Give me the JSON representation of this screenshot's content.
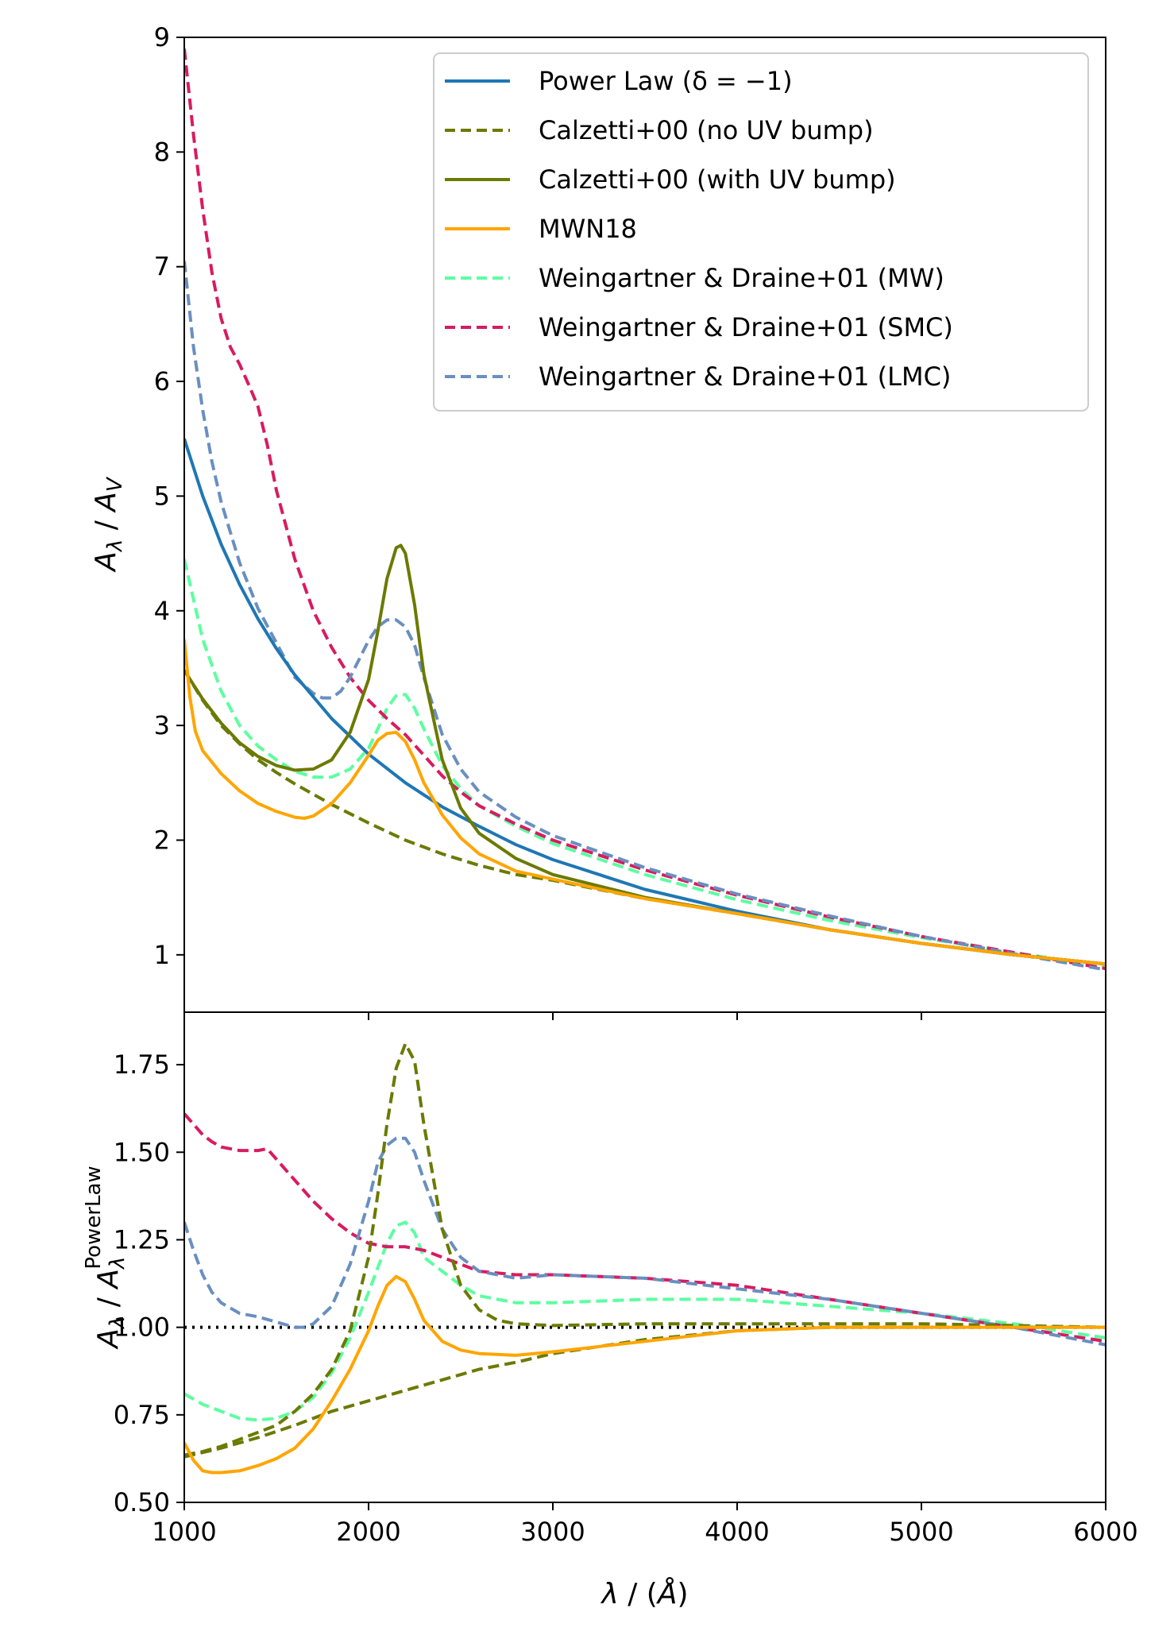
{
  "chart_data": [
    {
      "type": "line",
      "panel": "top",
      "xlabel": "λ / (Å)",
      "ylabel": "A_λ / A_V",
      "xlim": [
        1000,
        6000
      ],
      "ylim": [
        0.5,
        9
      ],
      "xticks": [
        2000,
        3000,
        4000,
        5000
      ],
      "yticks": [
        1,
        2,
        3,
        4,
        5,
        6,
        7,
        8,
        9
      ],
      "ytick_labels": [
        "1",
        "2",
        "3",
        "4",
        "5",
        "6",
        "7",
        "8",
        "9"
      ],
      "legend": {
        "position": "top-right",
        "entries": [
          {
            "label": "Power Law (δ = −1)",
            "color": "#1f77b4",
            "dash": "solid"
          },
          {
            "label": "Calzetti+00 (no UV bump)",
            "color": "#6b7a00",
            "dash": "dashed"
          },
          {
            "label": "Calzetti+00 (with UV bump)",
            "color": "#6b7a00",
            "dash": "solid"
          },
          {
            "label": "MWN18",
            "color": "#ffa500",
            "dash": "solid"
          },
          {
            "label": "Weingartner & Draine+01 (MW)",
            "color": "#5cffa0",
            "dash": "dashed"
          },
          {
            "label": "Weingartner & Draine+01 (SMC)",
            "color": "#d81b60",
            "dash": "dashed"
          },
          {
            "label": "Weingartner & Draine+01 (LMC)",
            "color": "#6a8fbf",
            "dash": "dashed"
          }
        ]
      },
      "series": [
        {
          "name": "Weingartner & Draine+01 (MW)",
          "color": "#5cffa0",
          "dash": "dashed",
          "x": [
            1000,
            1100,
            1200,
            1300,
            1400,
            1500,
            1600,
            1700,
            1800,
            1900,
            2000,
            2050,
            2100,
            2150,
            2200,
            2250,
            2300,
            2400,
            2500,
            2600,
            2800,
            3000,
            3500,
            4000,
            4500,
            5000,
            5500,
            6000
          ],
          "y": [
            4.45,
            3.75,
            3.3,
            3.0,
            2.82,
            2.7,
            2.6,
            2.55,
            2.55,
            2.62,
            2.8,
            2.97,
            3.15,
            3.26,
            3.27,
            3.15,
            2.97,
            2.65,
            2.45,
            2.3,
            2.12,
            1.97,
            1.7,
            1.48,
            1.3,
            1.15,
            1.02,
            0.9
          ]
        },
        {
          "name": "Weingartner & Draine+01 (SMC)",
          "color": "#d81b60",
          "dash": "dashed",
          "x": [
            1000,
            1050,
            1100,
            1150,
            1200,
            1250,
            1300,
            1350,
            1400,
            1450,
            1500,
            1600,
            1700,
            1800,
            1900,
            2000,
            2100,
            2200,
            2300,
            2400,
            2500,
            2600,
            2800,
            3000,
            3500,
            4000,
            4500,
            5000,
            5500,
            6000
          ],
          "y": [
            8.9,
            8.15,
            7.5,
            6.95,
            6.55,
            6.3,
            6.15,
            5.97,
            5.78,
            5.45,
            5.05,
            4.45,
            4.0,
            3.68,
            3.42,
            3.22,
            3.06,
            2.92,
            2.74,
            2.56,
            2.42,
            2.3,
            2.14,
            2.0,
            1.74,
            1.52,
            1.33,
            1.16,
            1.02,
            0.88
          ]
        },
        {
          "name": "Weingartner & Draine+01 (LMC)",
          "color": "#6a8fbf",
          "dash": "dashed",
          "x": [
            1000,
            1050,
            1100,
            1150,
            1200,
            1300,
            1400,
            1500,
            1600,
            1700,
            1750,
            1800,
            1850,
            1900,
            1950,
            2000,
            2050,
            2100,
            2150,
            2200,
            2250,
            2300,
            2400,
            2500,
            2600,
            2800,
            3000,
            3500,
            4000,
            4500,
            5000,
            5500,
            6000
          ],
          "y": [
            7.05,
            6.3,
            5.75,
            5.3,
            4.95,
            4.42,
            4.02,
            3.72,
            3.42,
            3.28,
            3.24,
            3.24,
            3.3,
            3.42,
            3.58,
            3.74,
            3.86,
            3.92,
            3.92,
            3.86,
            3.7,
            3.42,
            2.92,
            2.62,
            2.42,
            2.2,
            2.04,
            1.76,
            1.53,
            1.34,
            1.16,
            1.01,
            0.87
          ]
        },
        {
          "name": "Power Law (δ = −1)",
          "color": "#1f77b4",
          "dash": "solid",
          "x": [
            1000,
            1100,
            1200,
            1300,
            1400,
            1500,
            1600,
            1800,
            2000,
            2200,
            2400,
            2600,
            2800,
            3000,
            3500,
            4000,
            4500,
            5000,
            5500,
            6000
          ],
          "y": [
            5.5,
            5.0,
            4.58,
            4.23,
            3.93,
            3.67,
            3.44,
            3.06,
            2.75,
            2.5,
            2.29,
            2.12,
            1.96,
            1.83,
            1.57,
            1.38,
            1.22,
            1.1,
            1.0,
            0.92
          ]
        },
        {
          "name": "Calzetti+00 (no UV bump)",
          "color": "#6b7a00",
          "dash": "dashed",
          "x": [
            1000,
            1100,
            1200,
            1300,
            1400,
            1500,
            1600,
            1800,
            2000,
            2200,
            2400,
            2600,
            2800,
            3000,
            3500,
            4000,
            4500,
            5000,
            5500,
            6000
          ],
          "y": [
            3.48,
            3.22,
            3.0,
            2.84,
            2.7,
            2.59,
            2.49,
            2.31,
            2.15,
            2.0,
            1.88,
            1.78,
            1.7,
            1.65,
            1.49,
            1.36,
            1.22,
            1.1,
            1.0,
            0.92
          ]
        },
        {
          "name": "Calzetti+00 (with UV bump)",
          "color": "#6b7a00",
          "dash": "solid",
          "x": [
            1000,
            1100,
            1200,
            1300,
            1400,
            1500,
            1600,
            1700,
            1800,
            1900,
            2000,
            2050,
            2100,
            2150,
            2175,
            2200,
            2250,
            2300,
            2400,
            2500,
            2600,
            2800,
            3000,
            3500,
            4000,
            4500,
            5000,
            5500,
            6000
          ],
          "y": [
            3.48,
            3.23,
            3.02,
            2.85,
            2.73,
            2.65,
            2.61,
            2.62,
            2.7,
            2.94,
            3.4,
            3.82,
            4.28,
            4.55,
            4.57,
            4.5,
            4.05,
            3.45,
            2.7,
            2.28,
            2.06,
            1.84,
            1.7,
            1.5,
            1.36,
            1.22,
            1.1,
            1.0,
            0.92
          ]
        },
        {
          "name": "MWN18",
          "color": "#ffa500",
          "dash": "solid",
          "x": [
            1000,
            1030,
            1060,
            1100,
            1150,
            1200,
            1300,
            1400,
            1500,
            1600,
            1650,
            1700,
            1800,
            1900,
            2000,
            2050,
            2100,
            2150,
            2200,
            2250,
            2300,
            2400,
            2500,
            2600,
            2800,
            3000,
            3500,
            4000,
            4500,
            5000,
            5500,
            6000
          ],
          "y": [
            3.75,
            3.25,
            2.95,
            2.78,
            2.68,
            2.58,
            2.43,
            2.32,
            2.25,
            2.2,
            2.19,
            2.21,
            2.32,
            2.5,
            2.74,
            2.87,
            2.93,
            2.94,
            2.86,
            2.7,
            2.5,
            2.22,
            2.02,
            1.88,
            1.73,
            1.66,
            1.49,
            1.36,
            1.22,
            1.1,
            1.0,
            0.92
          ]
        }
      ]
    },
    {
      "type": "line",
      "panel": "bottom",
      "xlabel": "λ / (Å)",
      "ylabel": "A_λ / A_λ^PowerLaw",
      "xlim": [
        1000,
        6000
      ],
      "ylim": [
        0.5,
        1.9
      ],
      "xticks": [
        1000,
        2000,
        3000,
        4000,
        5000,
        6000
      ],
      "xtick_labels": [
        "1000",
        "2000",
        "3000",
        "4000",
        "5000",
        "6000"
      ],
      "yticks": [
        0.5,
        0.75,
        1.0,
        1.25,
        1.5,
        1.75
      ],
      "ytick_labels": [
        "0.50",
        "0.75",
        "1.00",
        "1.25",
        "1.50",
        "1.75"
      ],
      "reference_line": {
        "y": 1.0,
        "style": "dotted",
        "color": "#000000"
      },
      "series": [
        {
          "name": "Weingartner & Draine+01 (MW)",
          "color": "#5cffa0",
          "dash": "dashed",
          "x": [
            1000,
            1100,
            1200,
            1300,
            1400,
            1500,
            1600,
            1700,
            1800,
            1900,
            2000,
            2100,
            2150,
            2200,
            2250,
            2300,
            2400,
            2500,
            2600,
            2800,
            3000,
            3500,
            4000,
            4500,
            5000,
            5500,
            6000
          ],
          "y": [
            0.81,
            0.78,
            0.76,
            0.74,
            0.735,
            0.74,
            0.76,
            0.8,
            0.87,
            0.97,
            1.1,
            1.24,
            1.29,
            1.3,
            1.27,
            1.2,
            1.16,
            1.12,
            1.09,
            1.07,
            1.07,
            1.08,
            1.08,
            1.06,
            1.04,
            1.01,
            0.97
          ]
        },
        {
          "name": "Weingartner & Draine+01 (SMC)",
          "color": "#d81b60",
          "dash": "dashed",
          "x": [
            1000,
            1050,
            1100,
            1150,
            1200,
            1300,
            1400,
            1450,
            1500,
            1600,
            1700,
            1800,
            1900,
            2000,
            2100,
            2200,
            2300,
            2400,
            2500,
            2600,
            2800,
            3000,
            3500,
            4000,
            4500,
            5000,
            5500,
            6000
          ],
          "y": [
            1.61,
            1.58,
            1.55,
            1.53,
            1.515,
            1.505,
            1.505,
            1.51,
            1.48,
            1.42,
            1.36,
            1.31,
            1.27,
            1.24,
            1.23,
            1.23,
            1.22,
            1.2,
            1.18,
            1.16,
            1.15,
            1.15,
            1.14,
            1.12,
            1.08,
            1.04,
            1.0,
            0.96
          ]
        },
        {
          "name": "Weingartner & Draine+01 (LMC)",
          "color": "#6a8fbf",
          "dash": "dashed",
          "x": [
            1000,
            1050,
            1100,
            1150,
            1200,
            1300,
            1400,
            1500,
            1600,
            1650,
            1700,
            1800,
            1900,
            2000,
            2050,
            2100,
            2150,
            2200,
            2250,
            2300,
            2400,
            2500,
            2600,
            2800,
            3000,
            3500,
            4000,
            4500,
            5000,
            5500,
            6000
          ],
          "y": [
            1.3,
            1.22,
            1.15,
            1.1,
            1.07,
            1.04,
            1.03,
            1.015,
            1.0,
            1.0,
            1.01,
            1.06,
            1.18,
            1.36,
            1.47,
            1.52,
            1.54,
            1.54,
            1.5,
            1.42,
            1.28,
            1.2,
            1.16,
            1.14,
            1.15,
            1.14,
            1.11,
            1.08,
            1.04,
            1.0,
            0.95
          ]
        },
        {
          "name": "Calzetti+00 (no UV bump)",
          "color": "#6b7a00",
          "dash": "dashed",
          "x": [
            1000,
            1200,
            1400,
            1600,
            1800,
            2000,
            2200,
            2400,
            2600,
            2800,
            3000,
            3500,
            4000,
            4500,
            5000,
            5500,
            6000
          ],
          "y": [
            0.63,
            0.655,
            0.685,
            0.72,
            0.76,
            0.79,
            0.82,
            0.85,
            0.88,
            0.9,
            0.925,
            0.965,
            0.99,
            1.0,
            1.0,
            1.0,
            1.0
          ]
        },
        {
          "name": "Calzetti+00 (with UV bump)",
          "color": "#6b7a00",
          "dash": "dashed",
          "x": [
            1000,
            1100,
            1200,
            1300,
            1400,
            1500,
            1600,
            1700,
            1800,
            1900,
            2000,
            2050,
            2100,
            2150,
            2200,
            2250,
            2300,
            2400,
            2500,
            2600,
            2700,
            2800,
            3000,
            3500,
            4000,
            4500,
            5000,
            5500,
            6000
          ],
          "y": [
            0.635,
            0.645,
            0.66,
            0.68,
            0.7,
            0.72,
            0.76,
            0.81,
            0.88,
            0.99,
            1.2,
            1.38,
            1.58,
            1.74,
            1.81,
            1.76,
            1.58,
            1.28,
            1.12,
            1.05,
            1.02,
            1.01,
            1.005,
            1.01,
            1.01,
            1.01,
            1.01,
            1.005,
            1.0
          ]
        },
        {
          "name": "MWN18",
          "color": "#ffa500",
          "dash": "solid",
          "x": [
            1000,
            1050,
            1100,
            1150,
            1200,
            1300,
            1400,
            1500,
            1600,
            1700,
            1800,
            1900,
            2000,
            2050,
            2100,
            2150,
            2200,
            2250,
            2300,
            2400,
            2500,
            2600,
            2800,
            3000,
            3500,
            4000,
            4500,
            5000,
            5500,
            6000
          ],
          "y": [
            0.67,
            0.62,
            0.59,
            0.585,
            0.585,
            0.59,
            0.605,
            0.625,
            0.655,
            0.71,
            0.79,
            0.88,
            0.99,
            1.06,
            1.12,
            1.145,
            1.13,
            1.08,
            1.02,
            0.96,
            0.935,
            0.925,
            0.92,
            0.93,
            0.96,
            0.99,
            1.0,
            1.0,
            1.0,
            1.0
          ]
        }
      ]
    }
  ]
}
